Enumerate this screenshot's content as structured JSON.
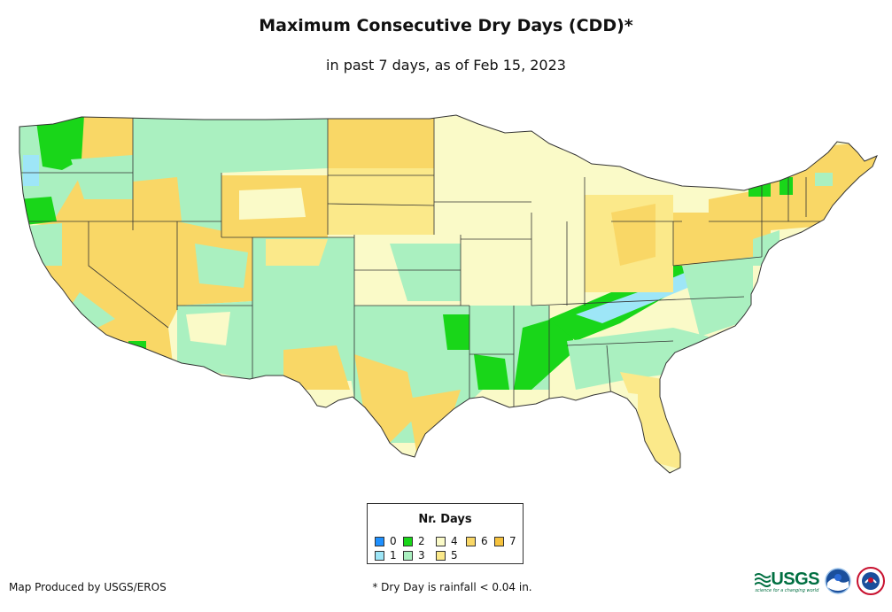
{
  "title": "Maximum Consecutive Dry Days (CDD)*",
  "subtitle": "in past 7 days, as of Feb 15, 2023",
  "legend": {
    "title": "Nr. Days",
    "items": [
      {
        "label": "0",
        "color": "#1e90ff"
      },
      {
        "label": "1",
        "color": "#9ee6f7"
      },
      {
        "label": "2",
        "color": "#19d619"
      },
      {
        "label": "3",
        "color": "#aaf0c0"
      },
      {
        "label": "4",
        "color": "#fafac8"
      },
      {
        "label": "5",
        "color": "#fbe98a"
      },
      {
        "label": "6",
        "color": "#f9d766"
      },
      {
        "label": "7",
        "color": "#f6c23c"
      }
    ]
  },
  "producer": "Map Produced by USGS/EROS",
  "footnote": "* Dry Day is rainfall < 0.04 in.",
  "logos": {
    "usgs_word": "USGS",
    "usgs_tagline": "science for a changing world",
    "noaa": "noaa",
    "nws": "NWS"
  },
  "colors": {
    "border": "#333333",
    "background": "#ffffff"
  }
}
